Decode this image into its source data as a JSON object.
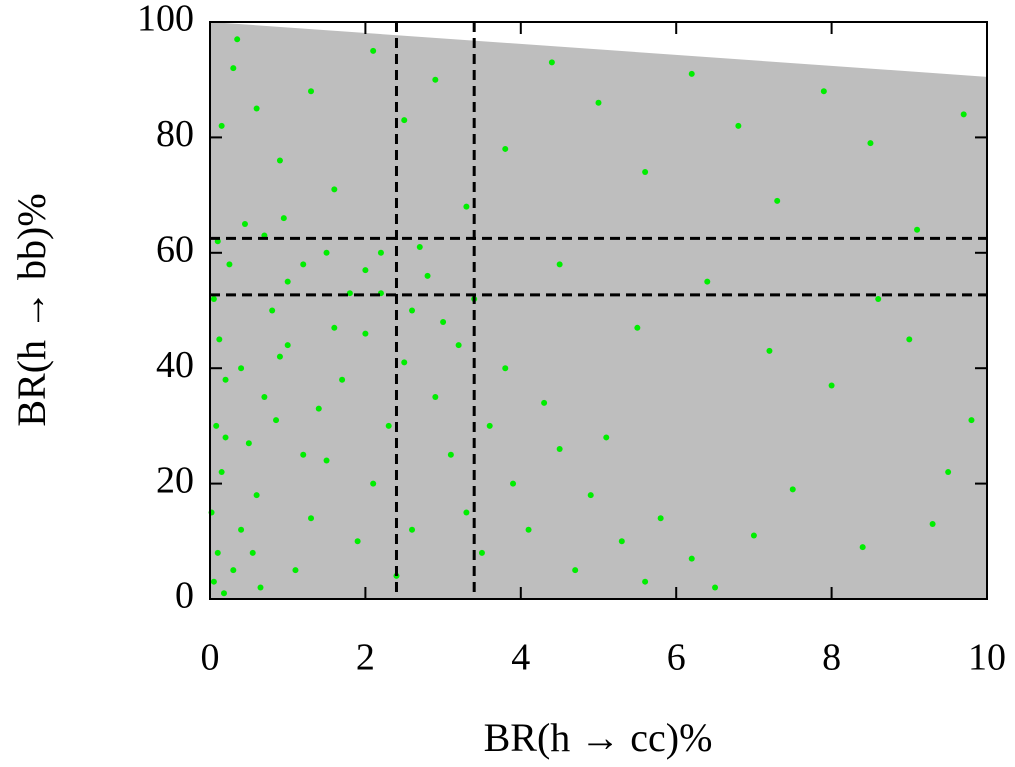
{
  "chart_data": {
    "type": "scatter",
    "xlabel": "BR(h → cc)%",
    "ylabel": "BR(h → bb)%",
    "xlim": [
      0,
      10
    ],
    "ylim": [
      0,
      100
    ],
    "xticks": [
      0,
      2,
      4,
      6,
      8,
      10
    ],
    "yticks": [
      0,
      20,
      40,
      60,
      80,
      100
    ],
    "area": {
      "color": "#bebebe",
      "x": [
        0,
        10
      ],
      "upper": [
        100,
        90.5
      ]
    },
    "vlines": [
      2.4,
      3.4
    ],
    "hlines": [
      52.7,
      62.5
    ],
    "series": [
      {
        "color": "#00ee00",
        "x": [
          0.05,
          0.1,
          0.02,
          0.15,
          0.08,
          0.2,
          0.12,
          0.05,
          0.25,
          0.1,
          0.3,
          0.18,
          0.4,
          0.6,
          0.5,
          0.7,
          0.9,
          0.8,
          1.0,
          1.2,
          1.1,
          1.3,
          1.5,
          1.4,
          1.6,
          1.8,
          2.0,
          2.2,
          1.9,
          2.1,
          2.3,
          2.5,
          2.6,
          2.8,
          2.7,
          3.0,
          3.2,
          2.9,
          3.1,
          3.3,
          3.5,
          3.6,
          3.8,
          3.9,
          4.1,
          4.3,
          4.5,
          4.7,
          4.9,
          5.1,
          5.3,
          5.6,
          5.8,
          6.2,
          6.5,
          7.0,
          7.5,
          8.0,
          8.4,
          9.0,
          9.5,
          9.8,
          0.3,
          0.6,
          0.9,
          1.3,
          1.6,
          2.1,
          2.5,
          2.9,
          3.3,
          3.8,
          4.4,
          5.0,
          5.6,
          6.2,
          6.8,
          7.3,
          7.9,
          8.5,
          9.1,
          9.7,
          4.5,
          5.5,
          6.4,
          7.2,
          8.6,
          9.3,
          0.35,
          0.15,
          0.45,
          0.7,
          1.0,
          0.2,
          0.4,
          0.55,
          0.65,
          1.7,
          2.4,
          2.0,
          1.2,
          0.85,
          3.4,
          2.2,
          1.5,
          0.95,
          2.6
        ],
        "values": [
          3,
          8,
          15,
          22,
          30,
          38,
          45,
          52,
          58,
          62,
          5,
          1,
          12,
          18,
          27,
          35,
          42,
          50,
          55,
          58,
          5,
          14,
          24,
          33,
          47,
          53,
          57,
          60,
          10,
          20,
          30,
          41,
          50,
          56,
          61,
          48,
          44,
          35,
          25,
          15,
          8,
          30,
          40,
          20,
          12,
          34,
          26,
          5,
          18,
          28,
          10,
          3,
          14,
          7,
          2,
          11,
          19,
          37,
          9,
          45,
          22,
          31,
          92,
          85,
          76,
          88,
          71,
          95,
          83,
          90,
          68,
          78,
          93,
          86,
          74,
          91,
          82,
          69,
          88,
          79,
          64,
          84,
          58,
          47,
          55,
          43,
          52,
          13,
          97,
          82,
          65,
          63,
          44,
          28,
          40,
          8,
          2,
          38,
          4,
          46,
          25,
          31,
          52,
          53,
          60,
          66,
          12
        ]
      }
    ]
  }
}
